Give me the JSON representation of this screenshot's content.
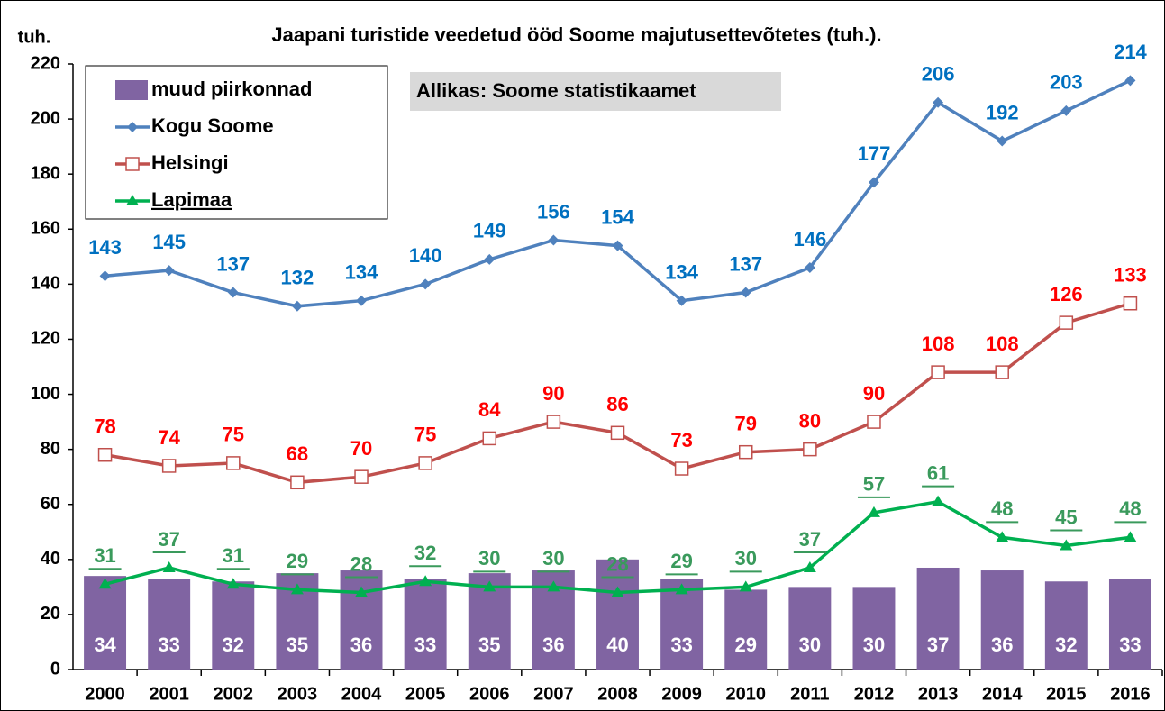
{
  "chart_data": {
    "type": "combo",
    "title": "Jaapani turistide veedetud ööd Soome majutusettevõtetes (tuh.).",
    "y_label": "tuh.",
    "annotation": "Allikas: Soome statistikaamet",
    "categories": [
      "2000",
      "2001",
      "2002",
      "2003",
      "2004",
      "2005",
      "2006",
      "2007",
      "2008",
      "2009",
      "2010",
      "2011",
      "2012",
      "2013",
      "2014",
      "2015",
      "2016"
    ],
    "series": [
      {
        "name": "muud piirkonnad",
        "type": "bar",
        "color": "#8064a2",
        "label_color": "#ffffff",
        "values": [
          34,
          33,
          32,
          35,
          36,
          33,
          35,
          36,
          40,
          33,
          29,
          30,
          30,
          37,
          36,
          32,
          33
        ]
      },
      {
        "name": "Kogu Soome",
        "type": "line",
        "marker": "diamond",
        "color": "#4f81bd",
        "label_color": "#0070c0",
        "values": [
          143,
          145,
          137,
          132,
          134,
          140,
          149,
          156,
          154,
          134,
          137,
          146,
          177,
          206,
          192,
          203,
          214
        ]
      },
      {
        "name": "Helsingi",
        "type": "line",
        "marker": "square",
        "color": "#c0504d",
        "label_color": "#ff0000",
        "values": [
          78,
          74,
          75,
          68,
          70,
          75,
          84,
          90,
          86,
          73,
          79,
          80,
          90,
          108,
          108,
          126,
          133
        ]
      },
      {
        "name": "Lapimaa",
        "type": "line",
        "marker": "triangle",
        "color": "#00b050",
        "label_color": "#3a9a5c",
        "underline": true,
        "values": [
          31,
          37,
          31,
          29,
          28,
          32,
          30,
          30,
          28,
          29,
          30,
          37,
          57,
          61,
          48,
          45,
          48
        ]
      }
    ],
    "ylim": [
      0,
      220
    ],
    "yticks": [
      0,
      20,
      40,
      60,
      80,
      100,
      120,
      140,
      160,
      180,
      200,
      220
    ],
    "grid": false,
    "legend": "top-left"
  }
}
